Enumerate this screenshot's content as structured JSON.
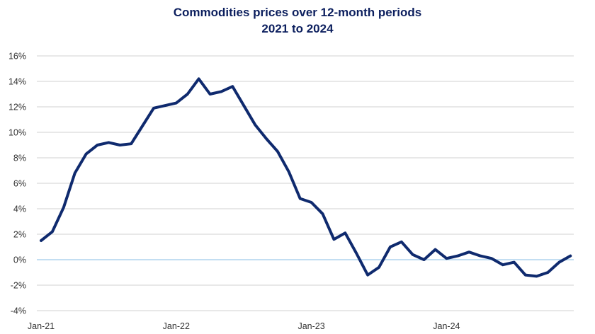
{
  "chart_data": {
    "type": "line",
    "title": "Commodities prices over 12-month periods",
    "subtitle": "2021 to 2024",
    "xlabel": "",
    "ylabel": "",
    "x_tick_labels": [
      "Jan-21",
      "Jan-22",
      "Jan-23",
      "Jan-24"
    ],
    "y_tick_labels": [
      "-4%",
      "-2%",
      "0%",
      "2%",
      "4%",
      "6%",
      "8%",
      "10%",
      "12%",
      "14%",
      "16%"
    ],
    "ylim": [
      -4,
      16
    ],
    "x_start": "Jan-21",
    "x_end": "Dec-24",
    "grid": true,
    "colors": {
      "line": "#0f2a6e",
      "zero_line": "#9fcbea",
      "grid": "#d9d9d9",
      "title": "#0c1f5e"
    },
    "series": [
      {
        "values": [
          1.5,
          2.2,
          4.1,
          6.8,
          8.3,
          9.0,
          9.2,
          9.0,
          9.1,
          10.5,
          11.9,
          12.1,
          12.3,
          13.0,
          14.2,
          13.0,
          13.2,
          13.6,
          12.1,
          10.6,
          9.5,
          8.5,
          6.9,
          4.8,
          4.5,
          3.6,
          1.6,
          2.1,
          0.5,
          -1.2,
          -0.6,
          1.0,
          1.4,
          0.4,
          0.0,
          0.8,
          0.1,
          0.3,
          0.6,
          0.3,
          0.1,
          -0.4,
          -0.2,
          -1.2,
          -1.3,
          -1.0,
          -0.2,
          0.3
        ]
      }
    ]
  }
}
